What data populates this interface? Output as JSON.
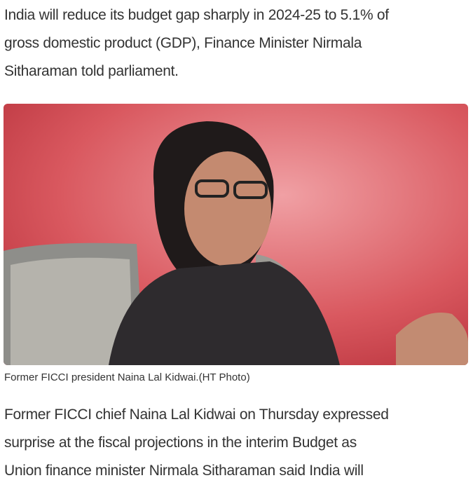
{
  "article": {
    "intro_lines": [
      "India will reduce its budget gap sharply in 2024-25 to 5.1% of",
      "gross domestic product (GDP), Finance Minister Nirmala",
      "Sitharaman told parliament."
    ],
    "photo_caption": "Former FICCI president Naina Lal Kidwai.(HT Photo)",
    "body_lines": [
      "Former FICCI chief Naina Lal Kidwai on Thursday expressed",
      "surprise at the fiscal projections in the interim Budget as",
      "Union finance minister Nirmala Sitharaman said India will"
    ]
  }
}
